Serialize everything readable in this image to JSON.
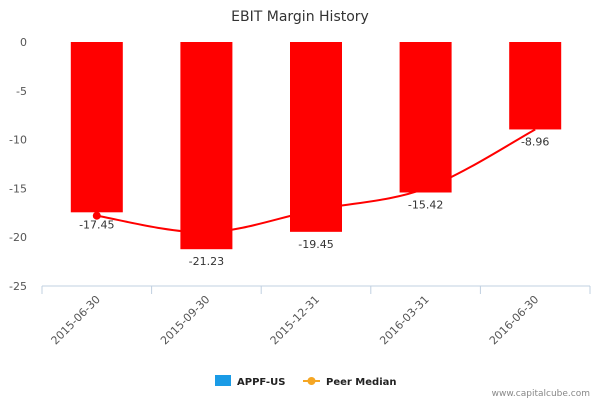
{
  "chart_data": {
    "type": "bar",
    "title": "EBIT Margin History",
    "xlabel": "",
    "ylabel": "",
    "categories": [
      "2015-06-30",
      "2015-09-30",
      "2015-12-31",
      "2016-03-31",
      "2016-06-30"
    ],
    "ylim": [
      -25,
      0
    ],
    "yticks": [
      0,
      -5,
      -10,
      -15,
      -20,
      -25
    ],
    "series": [
      {
        "name": "APPF-US",
        "type": "bar",
        "values": [
          -17.45,
          -21.23,
          -19.45,
          -15.42,
          -8.96
        ],
        "color": "#ff0000",
        "legend_color": "#1a9be6",
        "data_labels": [
          "-17.45",
          "-21.23",
          "-19.45",
          "-15.42",
          "-8.96"
        ]
      },
      {
        "name": "Peer Median",
        "type": "line",
        "values": [
          -17.8,
          -19.5,
          -17.2,
          -15.0,
          -8.96
        ],
        "color": "#ff0000",
        "legend_color": "#f5a623"
      }
    ],
    "grid": false,
    "legend_position": "bottom-center"
  },
  "credit": "www.capitalcube.com"
}
